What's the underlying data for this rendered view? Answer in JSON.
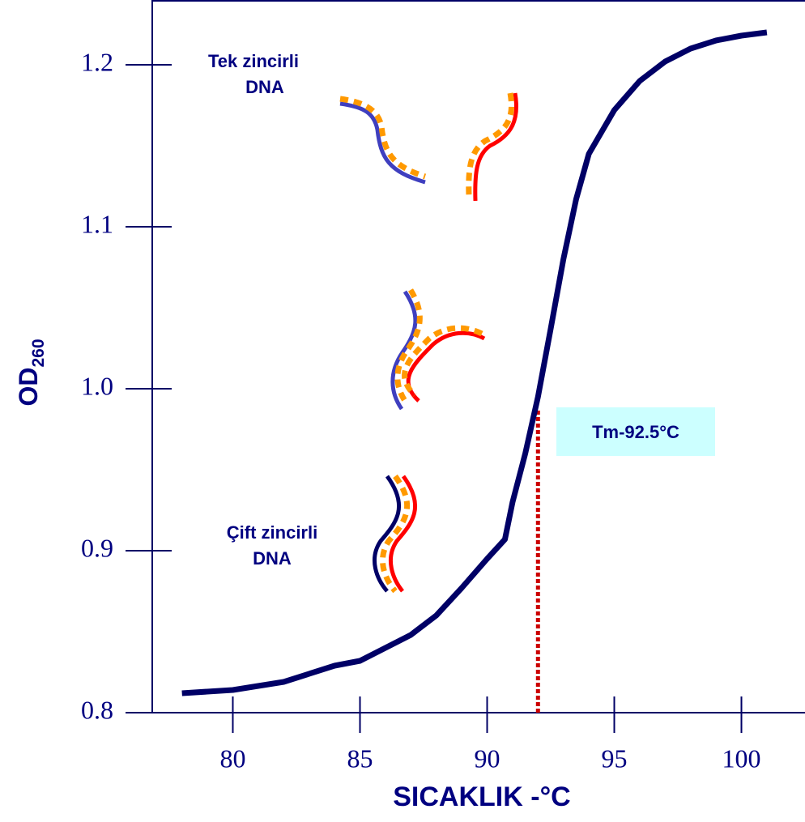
{
  "chart_data": {
    "type": "line",
    "xlabel": "SICAKLIK -°C",
    "ylabel": "OD",
    "ylabel_subscript": "260",
    "x": [
      78,
      80,
      82,
      84,
      85,
      87,
      88,
      89,
      90,
      90.7,
      91,
      91.5,
      92,
      92.5,
      93,
      93.5,
      94,
      95,
      96,
      97,
      98,
      99,
      100,
      101
    ],
    "series": [
      {
        "color": "#000066",
        "values": [
          0.812,
          0.814,
          0.819,
          0.829,
          0.832,
          0.848,
          0.86,
          0.877,
          0.895,
          0.907,
          0.93,
          0.96,
          0.995,
          1.037,
          1.08,
          1.117,
          1.145,
          1.172,
          1.19,
          1.202,
          1.21,
          1.215,
          1.218,
          1.22
        ]
      }
    ],
    "xlim": [
      76.8,
      102.5
    ],
    "xticks": [
      80,
      85,
      90,
      95,
      100
    ],
    "ylim": [
      0.8,
      1.24
    ],
    "yticks": [
      0.8,
      0.9,
      {
        "value": 1.0,
        "label": "1.0"
      },
      1.1,
      1.2
    ],
    "vline": {
      "x": 92,
      "y": 0.987,
      "color": "#cc0000"
    },
    "annotations": {
      "single_strand": [
        "Tek zincirli",
        "DNA"
      ],
      "double_strand": [
        "Çift zincirli",
        "DNA"
      ],
      "tm": "Tm-92.5°C"
    }
  }
}
